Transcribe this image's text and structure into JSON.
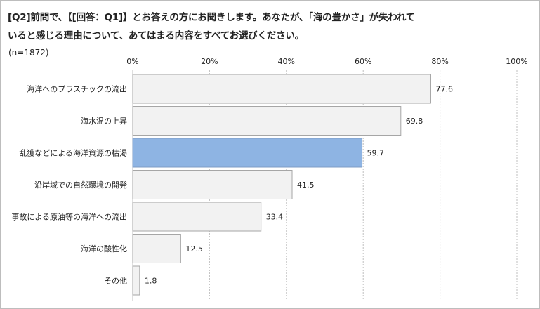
{
  "title_line1": "[Q2]前問で、【[回答：Q1]】とお答えの方にお聞きします。あなたが、「海の豊かさ」が失われて",
  "title_line2": "いると感じる理由について、あてはまる内容をすべてお選びください。",
  "sample_size": "(n=1872)",
  "chart_data": {
    "type": "bar",
    "orientation": "horizontal",
    "title": "[Q2]前問で、【[回答：Q1]】とお答えの方にお聞きします。あなたが、「海の豊かさ」が失われていると感じる理由について、あてはまる内容をすべてお選びください。",
    "xlabel": "",
    "ylabel": "",
    "categories": [
      "海洋へのプラスチックの流出",
      "海水温の上昇",
      "乱獲などによる海洋資源の枯渇",
      "沿岸域での自然環境の開発",
      "事故による原油等の海洋への流出",
      "海洋の酸性化",
      "その他"
    ],
    "values": [
      77.6,
      69.8,
      59.7,
      41.5,
      33.4,
      12.5,
      1.8
    ],
    "value_labels": [
      "77.6",
      "69.8",
      "59.7",
      "41.5",
      "33.4",
      "12.5",
      "1.8"
    ],
    "xlim": [
      0,
      100
    ],
    "tick_labels": [
      "0%",
      "20%",
      "40%",
      "60%",
      "80%",
      "100%"
    ],
    "tick_values": [
      0,
      20,
      40,
      60,
      80,
      100
    ],
    "axis_position": "top",
    "grid": true,
    "highlight_index": 2,
    "colors": {
      "bar_fill": "#f2f2f2",
      "bar_stroke": "#a6a6a6",
      "highlight_fill": "#8eb4e3",
      "highlight_stroke": "#7f9cc4",
      "grid": "#bfbfbf"
    }
  }
}
